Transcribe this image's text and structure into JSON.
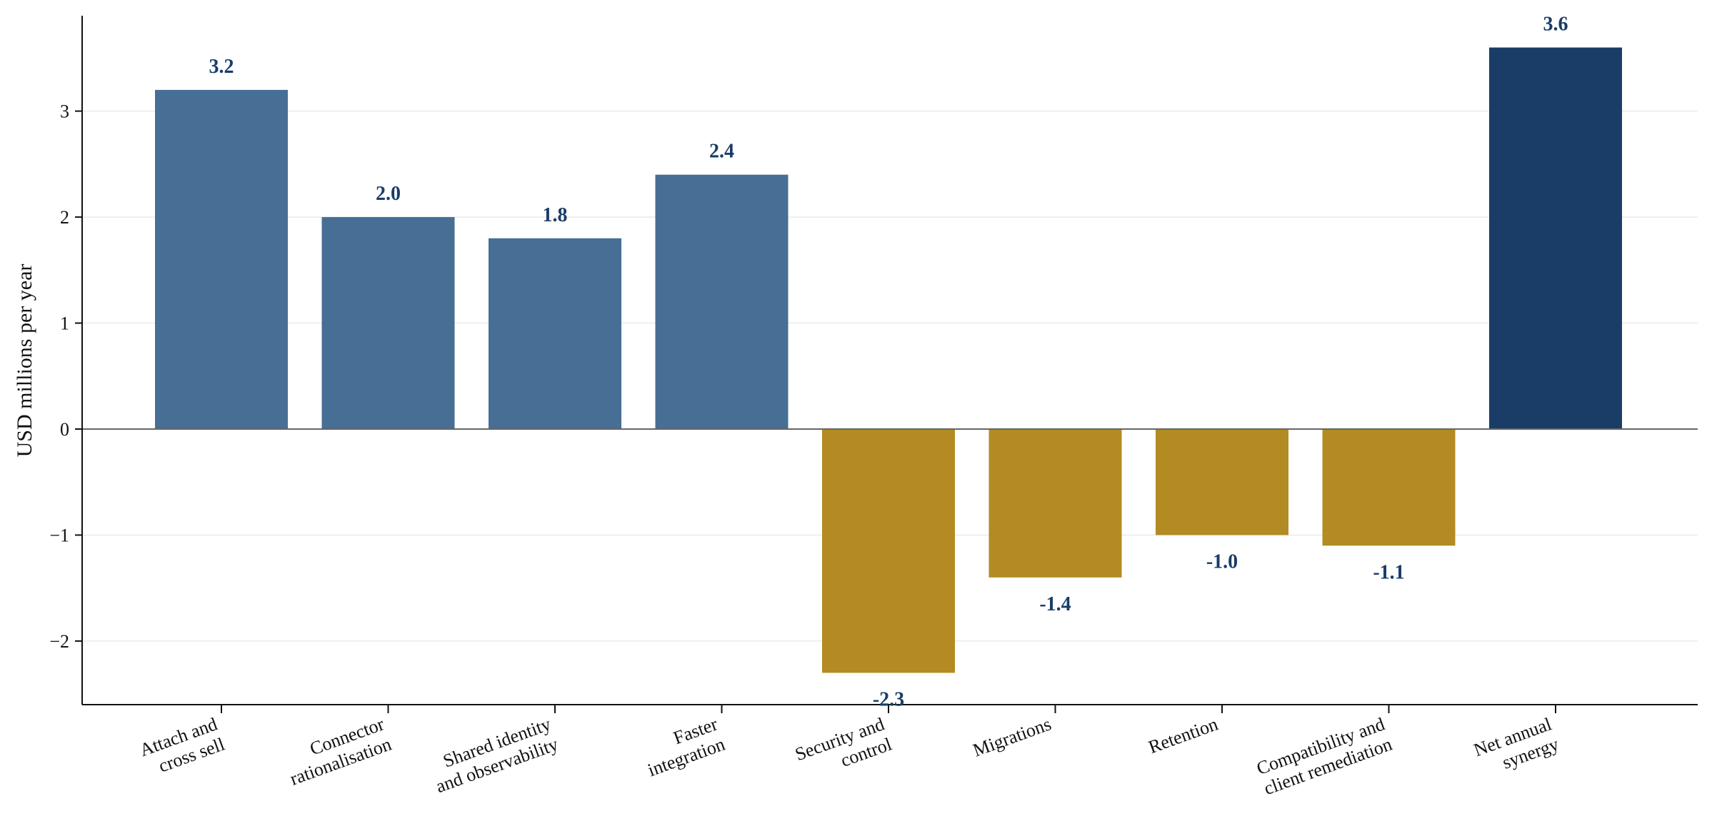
{
  "chart_data": {
    "type": "bar",
    "title": "",
    "xlabel": "",
    "ylabel": "USD millions per year",
    "ylim": [
      -2.6,
      3.9
    ],
    "yticks": [
      -2,
      -1,
      0,
      1,
      2,
      3
    ],
    "ytick_labels": [
      "−2",
      "−1",
      "0",
      "1",
      "2",
      "3"
    ],
    "grid": "horizontal",
    "legend": "none",
    "categories": [
      [
        "Attach and",
        "cross sell"
      ],
      [
        "Connector",
        "rationalisation"
      ],
      [
        "Shared identity",
        "and observability"
      ],
      [
        "Faster",
        "integration"
      ],
      [
        "Security and",
        "control"
      ],
      [
        "Migrations"
      ],
      [
        "Retention"
      ],
      [
        "Compatibility and",
        "client remediation"
      ],
      [
        "Net annual",
        "synergy"
      ]
    ],
    "values": [
      3.2,
      2.0,
      1.8,
      2.4,
      -2.3,
      -1.4,
      -1.0,
      -1.1,
      3.6
    ],
    "value_labels": [
      "3.2",
      "2.0",
      "1.8",
      "2.4",
      "-2.3",
      "-1.4",
      "-1.0",
      "-1.1",
      "3.6"
    ],
    "colors": {
      "benefit": "#476e94",
      "cost": "#b38b22",
      "net": "#1a3d68",
      "value_label": "#1a3d68",
      "axis": "#111111",
      "zero_line": "#666666",
      "grid": "#eaeaea"
    }
  }
}
